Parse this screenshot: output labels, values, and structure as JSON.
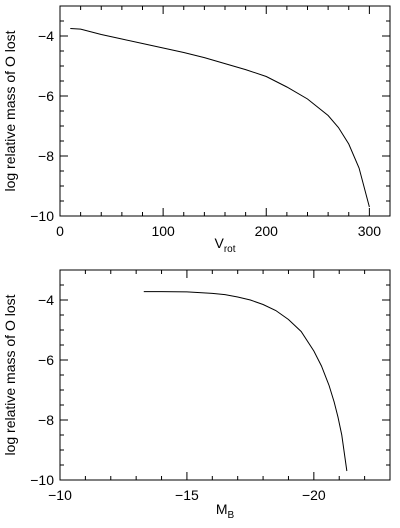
{
  "chart_data": [
    {
      "type": "line",
      "title": "",
      "xlabel": "V",
      "xlabel_sub": "rot",
      "ylabel": "log relative mass of O lost",
      "xlim": [
        0,
        320
      ],
      "ylim": [
        -10,
        -3
      ],
      "xticks_major": [
        0,
        100,
        200,
        300
      ],
      "xtick_labels": [
        "0",
        "100",
        "200",
        "300"
      ],
      "xticks_minor_step": 20,
      "yticks_major": [
        -10,
        -8,
        -6,
        -4
      ],
      "ytick_labels": [
        "−10",
        "−8",
        "−6",
        "−4"
      ],
      "yticks_minor_step": 0.5,
      "grid": false,
      "series": [
        {
          "color": "#000000",
          "x": [
            10,
            20,
            40,
            60,
            80,
            100,
            120,
            140,
            160,
            180,
            200,
            220,
            240,
            260,
            270,
            280,
            290,
            300
          ],
          "y": [
            -3.75,
            -3.77,
            -3.95,
            -4.1,
            -4.25,
            -4.4,
            -4.55,
            -4.72,
            -4.92,
            -5.12,
            -5.35,
            -5.7,
            -6.1,
            -6.65,
            -7.05,
            -7.6,
            -8.4,
            -9.7
          ]
        }
      ]
    },
    {
      "type": "line",
      "title": "",
      "xlabel": "M",
      "xlabel_sub": "B",
      "ylabel": "log relative mass of O lost",
      "xlim": [
        -10,
        -23
      ],
      "ylim": [
        -10,
        -3
      ],
      "xticks_major": [
        -10,
        -15,
        -20
      ],
      "xtick_labels": [
        "−10",
        "−15",
        "−20"
      ],
      "xticks_minor_step": 1,
      "yticks_major": [
        -10,
        -8,
        -6,
        -4
      ],
      "ytick_labels": [
        "−10",
        "−8",
        "−6",
        "−4"
      ],
      "yticks_minor_step": 0.5,
      "grid": false,
      "series": [
        {
          "color": "#000000",
          "x": [
            -13.3,
            -14,
            -15,
            -16,
            -16.5,
            -17,
            -17.5,
            -18,
            -18.5,
            -19,
            -19.5,
            -20,
            -20.3,
            -20.6,
            -20.8,
            -20.95,
            -21.1,
            -21.3
          ],
          "y": [
            -3.72,
            -3.72,
            -3.73,
            -3.78,
            -3.82,
            -3.9,
            -4.0,
            -4.15,
            -4.35,
            -4.65,
            -5.05,
            -5.7,
            -6.2,
            -6.85,
            -7.4,
            -7.9,
            -8.5,
            -9.7
          ]
        }
      ]
    }
  ]
}
